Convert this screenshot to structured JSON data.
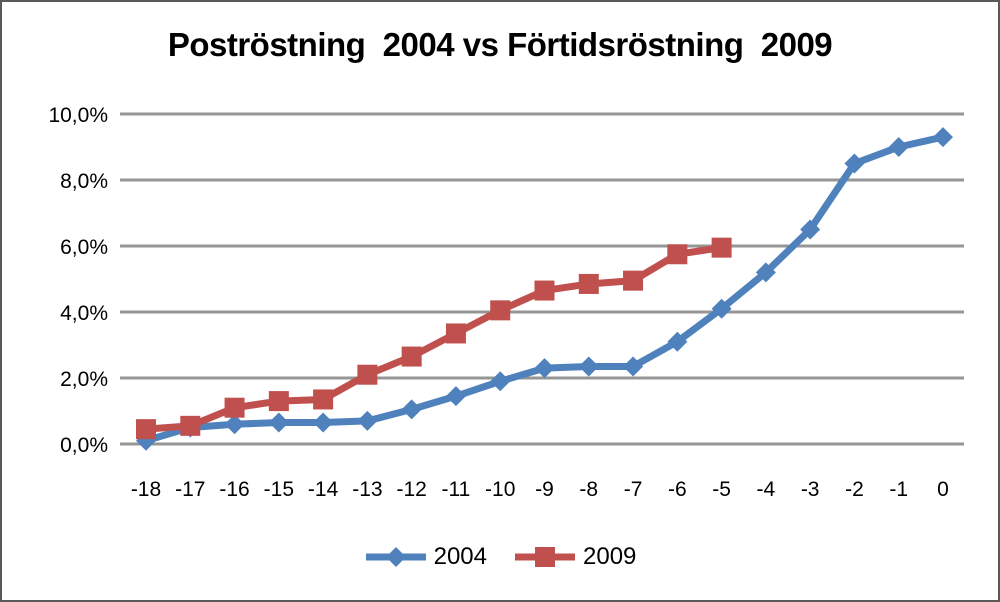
{
  "chart_data": {
    "type": "line",
    "title": "Poströstning  2004 vs Förtidsröstning  2009",
    "x_labels": [
      "-18",
      "-17",
      "-16",
      "-15",
      "-14",
      "-13",
      "-12",
      "-11",
      "-10",
      "-9",
      "-8",
      "-7",
      "-6",
      "-5",
      "-4",
      "-3",
      "-2",
      "-1",
      "0"
    ],
    "y_ticks": [
      "10,0%",
      "8,0%",
      "6,0%",
      "4,0%",
      "2,0%",
      "0,0%"
    ],
    "y_tick_values": [
      10,
      8,
      6,
      4,
      2,
      0
    ],
    "ylim": [
      0,
      10
    ],
    "grid": true,
    "grid_color": "#969696",
    "frame_color": "#595959",
    "text_color": "#000000",
    "legend_position": "bottom",
    "series": [
      {
        "name": "2004",
        "color": "#4F81BD",
        "marker": "diamond",
        "values": [
          0.1,
          0.5,
          0.6,
          0.65,
          0.65,
          0.7,
          1.05,
          1.45,
          1.9,
          2.3,
          2.35,
          2.35,
          3.1,
          4.1,
          5.2,
          6.5,
          8.5,
          9.0,
          9.3
        ]
      },
      {
        "name": "2009",
        "color": "#C0504D",
        "marker": "square",
        "values": [
          0.45,
          0.55,
          1.1,
          1.3,
          1.35,
          2.1,
          2.65,
          3.35,
          4.05,
          4.65,
          4.85,
          4.95,
          5.75,
          5.95
        ]
      }
    ]
  }
}
